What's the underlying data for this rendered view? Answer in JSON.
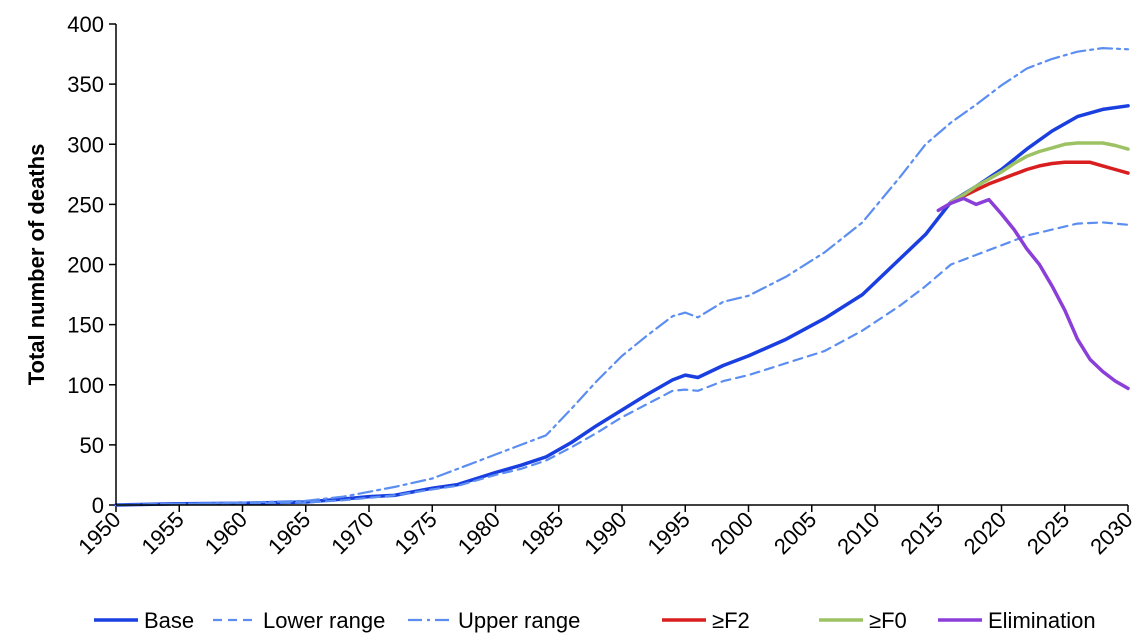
{
  "chart_data": {
    "type": "line",
    "title": "",
    "xlabel": "",
    "ylabel": "Total number of deaths",
    "xlim": [
      1950,
      2030
    ],
    "ylim": [
      0,
      400
    ],
    "x_ticks": [
      1950,
      1955,
      1960,
      1965,
      1970,
      1975,
      1980,
      1985,
      1990,
      1995,
      2000,
      2005,
      2010,
      2015,
      2020,
      2025,
      2030
    ],
    "y_ticks": [
      0,
      50,
      100,
      150,
      200,
      250,
      300,
      350,
      400
    ],
    "grid": false,
    "legend_position": "bottom",
    "series": [
      {
        "name": "Base",
        "color": "#1a3fe0",
        "style": "solid",
        "x": [
          1950,
          1955,
          1960,
          1965,
          1968,
          1970,
          1972,
          1975,
          1977,
          1980,
          1982,
          1984,
          1986,
          1988,
          1990,
          1992,
          1994,
          1995,
          1996,
          1998,
          2000,
          2003,
          2006,
          2009,
          2012,
          2014,
          2016,
          2018,
          2020,
          2022,
          2024,
          2026,
          2028,
          2030
        ],
        "y": [
          0,
          1,
          1.5,
          2.5,
          5,
          7,
          8,
          14,
          17,
          27,
          33,
          40,
          52,
          66,
          79,
          92,
          104,
          108,
          106,
          116,
          124,
          138,
          155,
          175,
          205,
          225,
          252,
          265,
          279,
          296,
          311,
          323,
          329,
          332
        ]
      },
      {
        "name": "Lower range",
        "color": "#5b8ef0",
        "style": "dashed",
        "x": [
          1950,
          1955,
          1960,
          1965,
          1968,
          1970,
          1972,
          1975,
          1977,
          1980,
          1982,
          1984,
          1986,
          1988,
          1990,
          1992,
          1994,
          1995,
          1996,
          1998,
          2000,
          2003,
          2006,
          2009,
          2012,
          2014,
          2016,
          2018,
          2020,
          2022,
          2024,
          2026,
          2028,
          2030
        ],
        "y": [
          0,
          1,
          1.5,
          2,
          4,
          6,
          8,
          13,
          16,
          25,
          30,
          37,
          48,
          60,
          73,
          84,
          95,
          96,
          95,
          103,
          108,
          118,
          128,
          145,
          166,
          182,
          200,
          208,
          216,
          224,
          229,
          234,
          235,
          233
        ]
      },
      {
        "name": "Upper range",
        "color": "#5b8ef0",
        "style": "dashdot",
        "x": [
          1950,
          1955,
          1960,
          1965,
          1968,
          1970,
          1972,
          1975,
          1977,
          1980,
          1982,
          1984,
          1986,
          1988,
          1990,
          1992,
          1994,
          1995,
          1996,
          1998,
          2000,
          2003,
          2006,
          2009,
          2012,
          2014,
          2016,
          2018,
          2020,
          2022,
          2024,
          2026,
          2028,
          2030
        ],
        "y": [
          0,
          1,
          2,
          3.5,
          7,
          11,
          15,
          22,
          30,
          42,
          50,
          58,
          80,
          103,
          124,
          141,
          157,
          160,
          156,
          169,
          174,
          190,
          210,
          235,
          273,
          300,
          318,
          333,
          349,
          363,
          371,
          377,
          380,
          379
        ]
      },
      {
        "name": "≥F2",
        "color": "#d81e1e",
        "style": "solid",
        "x": [
          2016,
          2017,
          2018,
          2019,
          2020,
          2021,
          2022,
          2023,
          2024,
          2025,
          2026,
          2027,
          2028,
          2029,
          2030
        ],
        "y": [
          252,
          257,
          262,
          267,
          271,
          275,
          279,
          282,
          284,
          285,
          285,
          285,
          282,
          279,
          276
        ]
      },
      {
        "name": "≥F0",
        "color": "#9dc264",
        "style": "solid",
        "x": [
          2016,
          2017,
          2018,
          2019,
          2020,
          2021,
          2022,
          2023,
          2024,
          2025,
          2026,
          2027,
          2028,
          2029,
          2030
        ],
        "y": [
          252,
          258,
          265,
          271,
          277,
          284,
          290,
          294,
          297,
          300,
          301,
          301,
          301,
          299,
          296
        ]
      },
      {
        "name": "Elimination",
        "color": "#8b3ed8",
        "style": "solid",
        "x": [
          2015,
          2016,
          2017,
          2018,
          2019,
          2020,
          2021,
          2022,
          2023,
          2024,
          2025,
          2026,
          2027,
          2028,
          2029,
          2030
        ],
        "y": [
          245,
          251,
          255,
          250,
          254,
          242,
          229,
          213,
          200,
          182,
          162,
          138,
          121,
          111,
          103,
          97
        ]
      }
    ]
  }
}
